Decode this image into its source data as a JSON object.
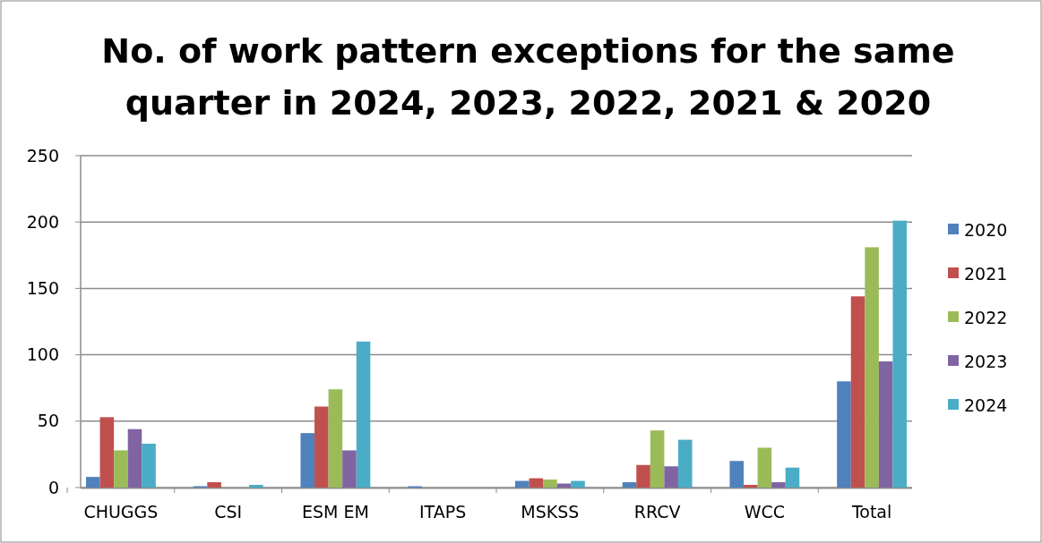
{
  "chart_data": {
    "type": "bar",
    "title": "No. of work pattern exceptions for the same quarter in 2024, 2023, 2022, 2021 & 2020",
    "categories": [
      "CHUGGS",
      "CSI",
      "ESM EM",
      "ITAPS",
      "MSKSS",
      "RRCV",
      "WCC",
      "Total"
    ],
    "series": [
      {
        "name": "2020",
        "color": "#4f81bd",
        "values": [
          8,
          1,
          41,
          1,
          5,
          4,
          20,
          80
        ]
      },
      {
        "name": "2021",
        "color": "#c0504d",
        "values": [
          53,
          4,
          61,
          0,
          7,
          17,
          2,
          144
        ]
      },
      {
        "name": "2022",
        "color": "#9bbb59",
        "values": [
          28,
          0,
          74,
          0,
          6,
          43,
          30,
          181
        ]
      },
      {
        "name": "2023",
        "color": "#8064a2",
        "values": [
          44,
          0,
          28,
          0,
          3,
          16,
          4,
          95
        ]
      },
      {
        "name": "2024",
        "color": "#4bacc6",
        "values": [
          33,
          2,
          110,
          0,
          5,
          36,
          15,
          201
        ]
      }
    ],
    "ylim": [
      0,
      250
    ],
    "yticks": [
      0,
      50,
      100,
      150,
      200,
      250
    ],
    "grid": "y",
    "legend": "right"
  }
}
